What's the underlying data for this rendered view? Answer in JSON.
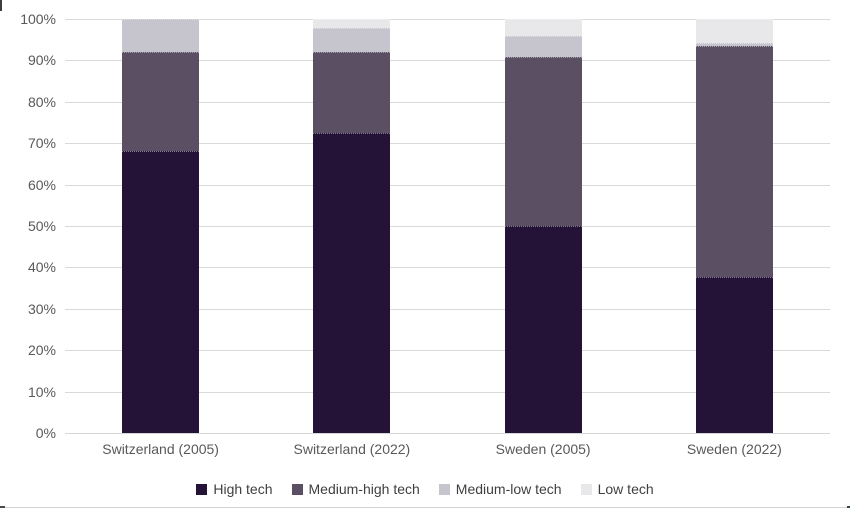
{
  "chart_data": {
    "type": "bar",
    "subtype": "stacked-100-percent",
    "title": "",
    "xlabel": "",
    "ylabel": "",
    "categories": [
      "Switzerland (2005)",
      "Switzerland (2022)",
      "Sweden (2005)",
      "Sweden (2022)"
    ],
    "series": [
      {
        "name": "High tech",
        "color": "#251337",
        "values": [
          68,
          72.5,
          50,
          37.7
        ]
      },
      {
        "name": "Medium-high tech",
        "color": "#5A4F63",
        "values": [
          24,
          19.5,
          40.8,
          55.8
        ]
      },
      {
        "name": "Medium-low tech",
        "color": "#C6C4CC",
        "values": [
          8,
          5.8,
          5.1,
          0.7
        ]
      },
      {
        "name": "Low tech",
        "color": "#E8E7E9",
        "values": [
          0,
          2.2,
          4.1,
          5.8
        ]
      }
    ],
    "y_axis": {
      "min": 0,
      "max": 100,
      "tick_step": 10,
      "ticks_top_down": [
        "100%",
        "90%",
        "80%",
        "70%",
        "60%",
        "50%",
        "40%",
        "30%",
        "20%",
        "10%",
        "0%"
      ],
      "grid": true,
      "gridline_color": "#D9D9D9",
      "tick_label_color": "#595959"
    },
    "legend_position": "bottom",
    "legend_text_color": "#3F3F3F"
  }
}
